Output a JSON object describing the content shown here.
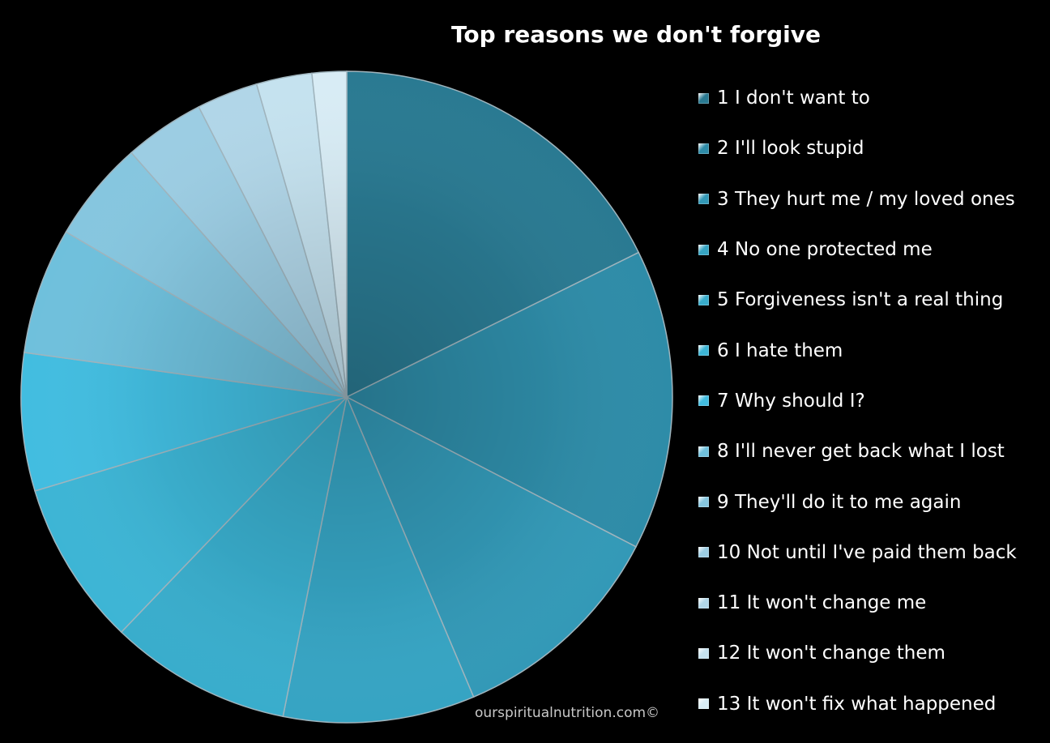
{
  "chart_data": {
    "type": "pie",
    "title": "Top reasons we don't forgive",
    "categories": [
      "1  I don't want to",
      "2  I'll look stupid",
      "3  They hurt me / my loved ones",
      "4  No one protected me",
      "5  Forgiveness isn't a real thing",
      "6  I hate them",
      "7  Why should I?",
      "8  I'll never get back what I lost",
      "9  They'll do it to me again",
      "10  Not until I've paid them back",
      "11  It won't change me",
      "12  It won't change them",
      "13  It won't fix what happened"
    ],
    "values": [
      18.6,
      15.7,
      11.6,
      10.0,
      9.5,
      8.6,
      7.2,
      6.6,
      5.3,
      4.2,
      3.2,
      2.9,
      1.8
    ],
    "colors": [
      "#2a7a92",
      "#2e8ca8",
      "#3399b7",
      "#36a4c3",
      "#39adcc",
      "#3db5d5",
      "#42bde0",
      "#6fc0dc",
      "#86c6df",
      "#9ccde3",
      "#b1d6e8",
      "#c5e2ef",
      "#d8ecf5"
    ],
    "legend_position": "right"
  },
  "footer": {
    "credit": "ourspiritualnutrition.com©"
  }
}
